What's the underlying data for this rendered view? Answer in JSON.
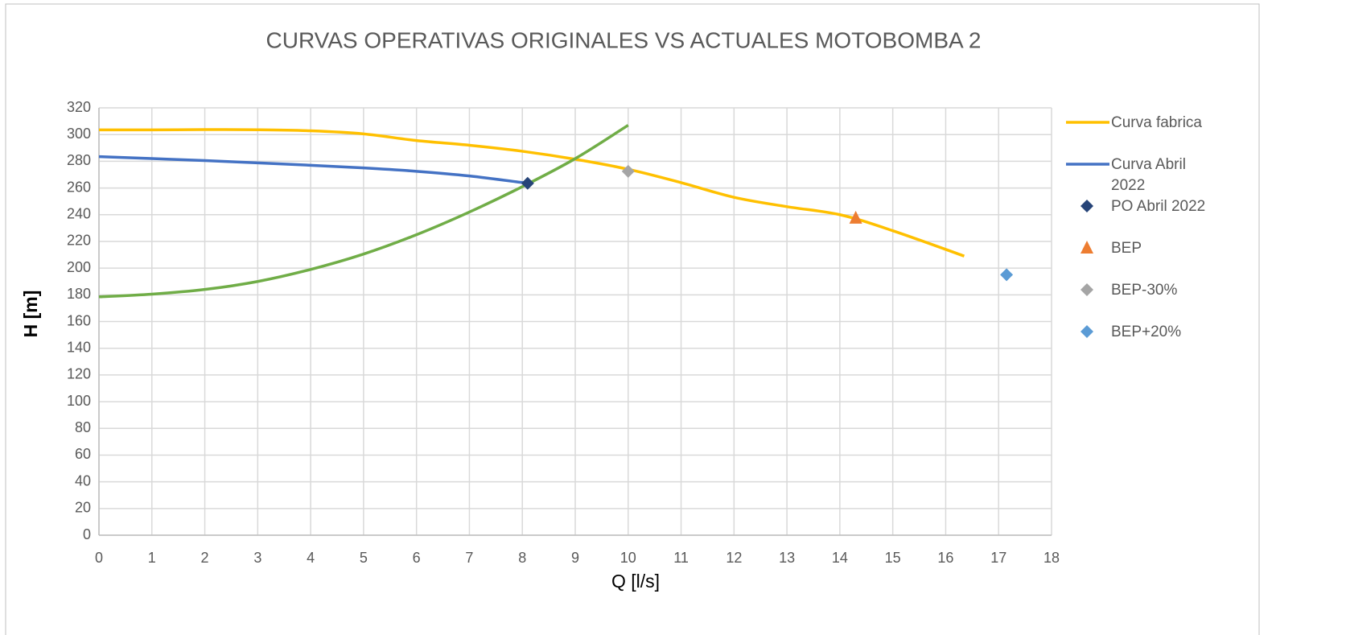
{
  "chart_data": {
    "type": "scatter",
    "title": "CURVAS OPERATIVAS ORIGINALES VS ACTUALES MOTOBOMBA 2",
    "x_label": "Q [l/s]",
    "y_label": "H [m]",
    "xlim": [
      0,
      18
    ],
    "xticks": [
      0,
      1,
      2,
      3,
      4,
      5,
      6,
      7,
      8,
      9,
      10,
      11,
      12,
      13,
      14,
      15,
      16,
      17,
      18
    ],
    "ylim": [
      0,
      320
    ],
    "yticks": [
      0,
      20,
      40,
      60,
      80,
      100,
      120,
      140,
      160,
      180,
      200,
      220,
      240,
      260,
      280,
      300,
      320
    ],
    "grid": true,
    "legend": "right",
    "series": [
      {
        "name": "Curva fabrica",
        "color": "#FFC000",
        "marker": "line",
        "x": [
          0,
          1,
          2,
          3,
          4,
          5,
          6,
          7,
          8,
          9,
          10,
          11,
          12,
          13,
          14,
          15,
          16.35
        ],
        "values": [
          303.5,
          303.5,
          303.7,
          303.6,
          302.8,
          300.5,
          295.5,
          292,
          287.5,
          281.5,
          274,
          264,
          253,
          246,
          240,
          228,
          209
        ]
      },
      {
        "name": "Curva Abril 2022",
        "color": "#4472C4",
        "marker": "line",
        "x": [
          0,
          1,
          2,
          3,
          4,
          5,
          6,
          7,
          8.1
        ],
        "values": [
          283.5,
          282,
          280.5,
          278.8,
          277,
          275,
          272.5,
          269,
          263.5
        ]
      },
      {
        "color": "#70AD47",
        "marker": "line",
        "x": [
          0,
          1,
          2,
          3,
          4,
          5,
          6,
          7,
          8,
          9,
          10
        ],
        "values": [
          178.5,
          180.5,
          184,
          190,
          199,
          210.5,
          225,
          242,
          261,
          282,
          307
        ]
      },
      {
        "name": "PO Abril 2022",
        "color": "#264478",
        "marker": "diamond",
        "x": [
          8.1
        ],
        "values": [
          263.5
        ]
      },
      {
        "name": "BEP",
        "color": "#ED7D31",
        "marker": "triangle",
        "x": [
          14.3
        ],
        "values": [
          237.5
        ]
      },
      {
        "name": "BEP-30%",
        "color": "#A5A5A5",
        "marker": "diamond",
        "x": [
          10.0
        ],
        "values": [
          272.5
        ]
      },
      {
        "name": "BEP+20%",
        "color": "#5B9BD5",
        "marker": "diamond",
        "x": [
          17.15
        ],
        "values": [
          195
        ]
      }
    ]
  }
}
